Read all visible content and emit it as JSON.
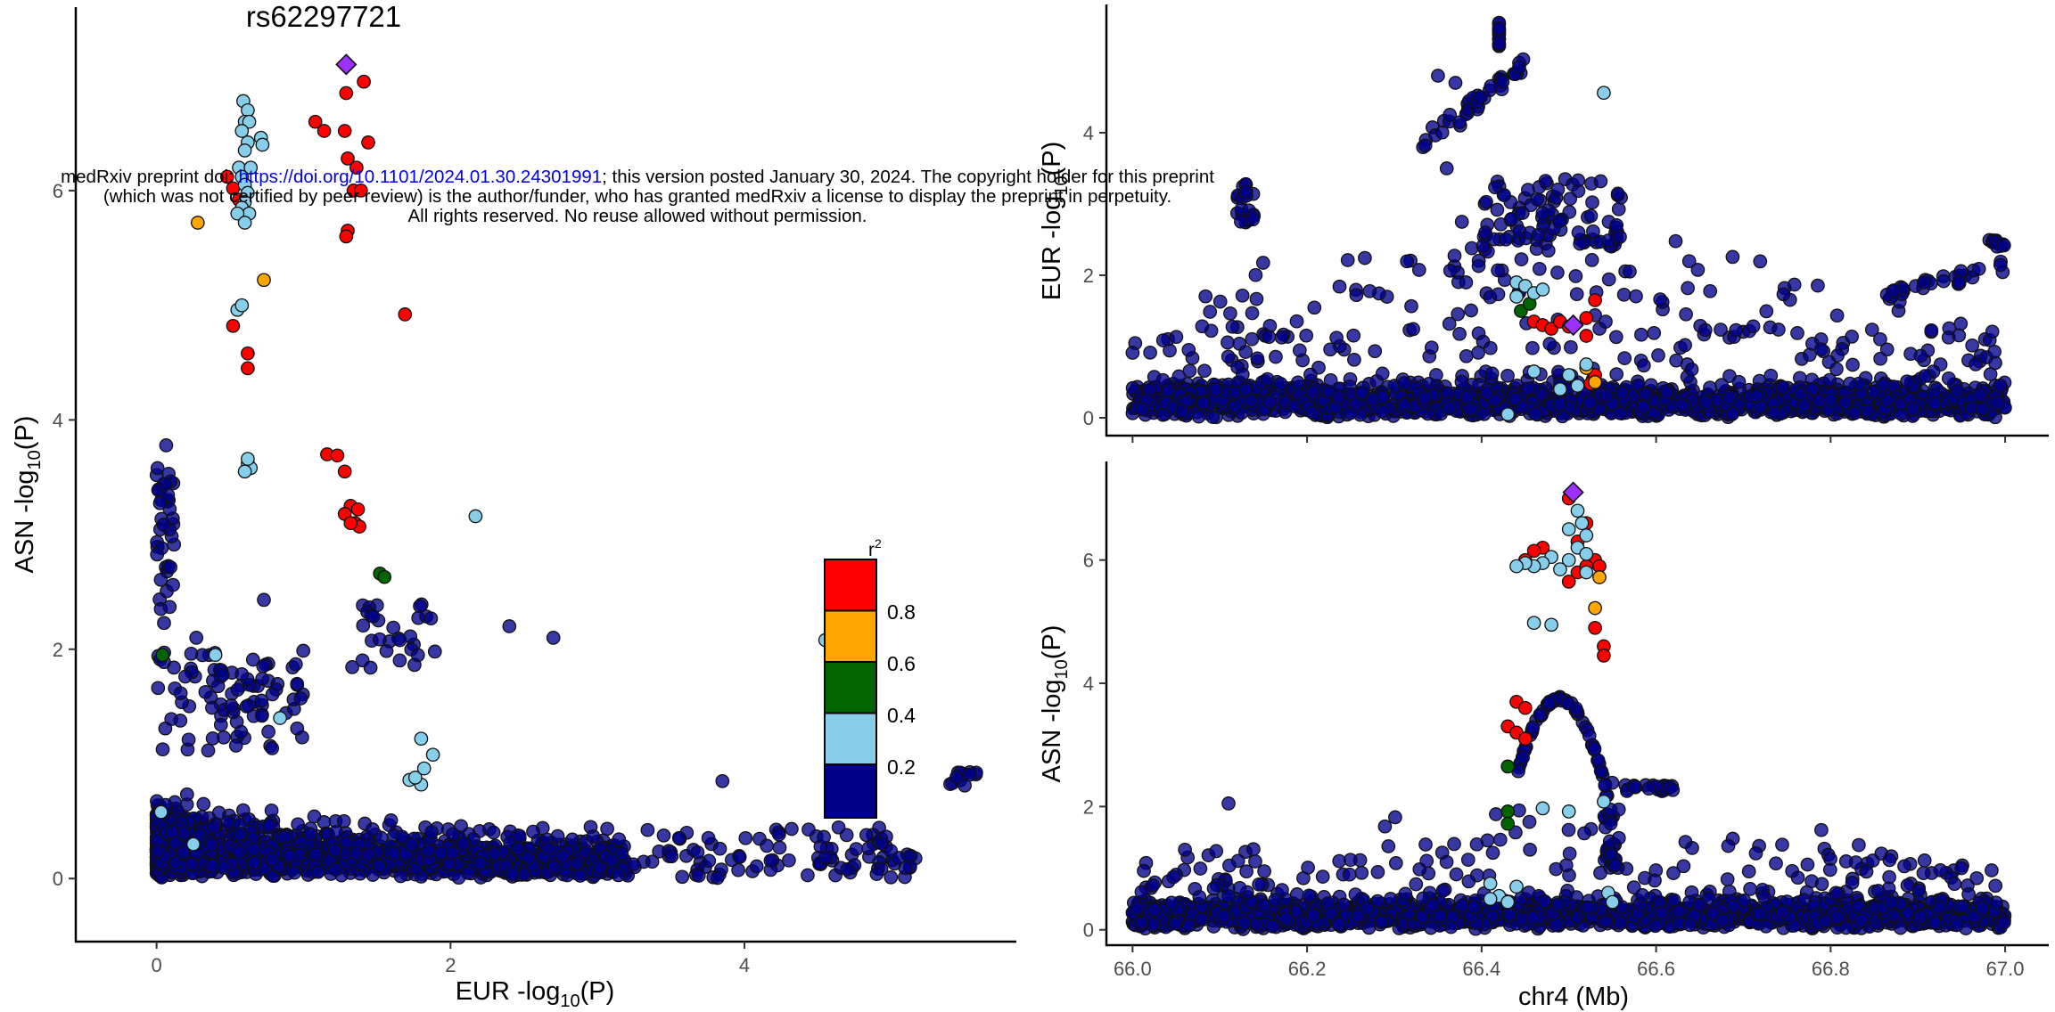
{
  "notice": {
    "line1_prefix": "medRxiv preprint doi: ",
    "line1_link": "https://doi.org/10.1101/2024.01.30.24301991",
    "line1_suffix": "; this version posted January 30, 2024. The copyright holder for this preprint",
    "line2": "(which was not certified by peer review) is the author/funder, who has granted medRxiv a license to display the preprint in perpetuity.",
    "line3": "All rights reserved. No reuse allowed without permission."
  },
  "colors": {
    "r2_0_2": "#00008b",
    "r2_2_4": "#87ceeb",
    "r2_4_6": "#006400",
    "r2_6_8": "#ffa500",
    "r2_8_10": "#ff0000",
    "lead": "#9b30ff"
  },
  "chart_data": [
    {
      "type": "scatter",
      "panel": "left",
      "title": "rs62297721",
      "xlabel": "EUR  -log10(P)",
      "ylabel": "ASN  -log10(P)",
      "xlim": [
        -0.55,
        5.85
      ],
      "ylim": [
        -0.55,
        7.6
      ],
      "xticks": [
        0,
        2,
        4
      ],
      "yticks": [
        0,
        2,
        4,
        6
      ],
      "legend": {
        "title": "r2",
        "labels": [
          "0.8",
          "0.6",
          "0.4",
          "0.2"
        ],
        "placement": "right"
      },
      "lead": {
        "x": 1.29,
        "y": 7.1
      },
      "series": [
        {
          "color": "#ff0000",
          "points": [
            [
              1.29,
              6.85
            ],
            [
              1.41,
              6.95
            ],
            [
              1.08,
              6.6
            ],
            [
              1.14,
              6.52
            ],
            [
              1.28,
              6.52
            ],
            [
              1.44,
              6.42
            ],
            [
              1.3,
              6.28
            ],
            [
              1.36,
              6.2
            ],
            [
              1.34,
              6.0
            ],
            [
              1.39,
              6.0
            ],
            [
              1.3,
              5.65
            ],
            [
              1.29,
              5.6
            ],
            [
              1.69,
              4.92
            ],
            [
              0.52,
              4.82
            ],
            [
              0.62,
              4.58
            ],
            [
              0.62,
              4.45
            ],
            [
              1.16,
              3.7
            ],
            [
              1.23,
              3.69
            ],
            [
              1.28,
              3.55
            ],
            [
              1.32,
              3.25
            ],
            [
              1.37,
              3.22
            ],
            [
              1.28,
              3.18
            ],
            [
              1.35,
              3.1
            ],
            [
              1.38,
              3.07
            ],
            [
              1.32,
              3.1
            ],
            [
              0.52,
              6.02
            ],
            [
              0.56,
              5.92
            ],
            [
              0.48,
              6.12
            ]
          ]
        },
        {
          "color": "#ffa500",
          "points": [
            [
              0.28,
              5.72
            ],
            [
              0.73,
              5.22
            ]
          ]
        },
        {
          "color": "#006400",
          "points": [
            [
              1.52,
              2.66
            ],
            [
              1.55,
              2.63
            ],
            [
              0.04,
              1.95
            ]
          ]
        },
        {
          "color": "#87ceeb",
          "points": [
            [
              0.59,
              6.78
            ],
            [
              0.62,
              6.7
            ],
            [
              0.6,
              6.6
            ],
            [
              0.63,
              6.6
            ],
            [
              0.58,
              6.52
            ],
            [
              0.71,
              6.46
            ],
            [
              0.72,
              6.4
            ],
            [
              0.62,
              6.42
            ],
            [
              0.6,
              6.35
            ],
            [
              0.56,
              6.2
            ],
            [
              0.64,
              6.2
            ],
            [
              0.58,
              6.12
            ],
            [
              0.6,
              6.05
            ],
            [
              0.62,
              5.98
            ],
            [
              0.6,
              5.9
            ],
            [
              0.58,
              5.85
            ],
            [
              0.63,
              5.8
            ],
            [
              0.55,
              5.8
            ],
            [
              0.6,
              5.72
            ],
            [
              0.55,
              4.96
            ],
            [
              0.58,
              5.0
            ],
            [
              0.62,
              3.62
            ],
            [
              0.64,
              3.58
            ],
            [
              0.6,
              3.55
            ],
            [
              0.62,
              3.66
            ],
            [
              2.17,
              3.16
            ],
            [
              4.55,
              2.08
            ],
            [
              0.84,
              1.4
            ],
            [
              0.4,
              1.95
            ],
            [
              1.8,
              1.22
            ],
            [
              1.72,
              0.86
            ],
            [
              1.88,
              1.08
            ],
            [
              1.8,
              0.82
            ],
            [
              0.03,
              0.58
            ],
            [
              0.25,
              0.3
            ],
            [
              1.76,
              0.88
            ],
            [
              1.82,
              0.96
            ]
          ]
        },
        {
          "color": "#00008b",
          "generated": true
        }
      ]
    },
    {
      "type": "scatter",
      "panel": "top-right",
      "ylabel": "EUR  -log10(P)",
      "xlim": [
        65.97,
        67.05
      ],
      "ylim": [
        -0.25,
        5.8
      ],
      "yticks": [
        0,
        2,
        4
      ],
      "lead": {
        "x": 66.505,
        "y": 1.3
      },
      "series": [
        {
          "color": "#ff0000",
          "points": [
            [
              66.46,
              1.35
            ],
            [
              66.47,
              1.3
            ],
            [
              66.48,
              1.25
            ],
            [
              66.49,
              1.35
            ],
            [
              66.5,
              1.28
            ],
            [
              66.52,
              1.4
            ],
            [
              66.53,
              1.65
            ],
            [
              66.52,
              1.15
            ],
            [
              66.53,
              0.6
            ],
            [
              66.525,
              0.48
            ]
          ]
        },
        {
          "color": "#ffa500",
          "points": [
            [
              66.52,
              0.7
            ],
            [
              66.53,
              0.5
            ]
          ]
        },
        {
          "color": "#006400",
          "points": [
            [
              66.445,
              1.5
            ],
            [
              66.455,
              1.6
            ]
          ]
        },
        {
          "color": "#87ceeb",
          "points": [
            [
              66.54,
              4.56
            ],
            [
              66.44,
              1.9
            ],
            [
              66.45,
              1.85
            ],
            [
              66.46,
              1.75
            ],
            [
              66.47,
              1.8
            ],
            [
              66.44,
              1.7
            ],
            [
              66.46,
              0.65
            ],
            [
              66.5,
              0.6
            ],
            [
              66.51,
              0.45
            ],
            [
              66.49,
              0.4
            ],
            [
              66.52,
              0.75
            ],
            [
              66.43,
              0.05
            ]
          ]
        },
        {
          "color": "#00008b",
          "generated": true
        }
      ]
    },
    {
      "type": "scatter",
      "panel": "bottom-right",
      "xlabel": "chr4 (Mb)",
      "ylabel": "ASN  -log10(P)",
      "xlim": [
        65.97,
        67.05
      ],
      "ylim": [
        -0.25,
        7.6
      ],
      "xticks": [
        66.0,
        66.2,
        66.4,
        66.6,
        66.8,
        67.0
      ],
      "yticks": [
        0,
        2,
        4,
        6
      ],
      "lead": {
        "x": 66.505,
        "y": 7.1
      },
      "series": [
        {
          "color": "#ff0000",
          "points": [
            [
              66.5,
              7.0
            ],
            [
              66.52,
              6.6
            ],
            [
              66.51,
              6.3
            ],
            [
              66.53,
              6.0
            ],
            [
              66.535,
              5.9
            ],
            [
              66.47,
              6.2
            ],
            [
              66.46,
              6.15
            ],
            [
              66.45,
              6.0
            ],
            [
              66.51,
              5.8
            ],
            [
              66.5,
              5.65
            ],
            [
              66.53,
              4.9
            ],
            [
              66.54,
              4.6
            ],
            [
              66.54,
              4.45
            ],
            [
              66.44,
              3.7
            ],
            [
              66.45,
              3.6
            ],
            [
              66.43,
              3.3
            ],
            [
              66.44,
              3.2
            ],
            [
              66.45,
              3.1
            ],
            [
              66.52,
              5.9
            ]
          ]
        },
        {
          "color": "#ffa500",
          "points": [
            [
              66.53,
              5.22
            ],
            [
              66.535,
              5.72
            ]
          ]
        },
        {
          "color": "#006400",
          "points": [
            [
              66.43,
              2.65
            ],
            [
              66.43,
              1.92
            ],
            [
              66.43,
              1.72
            ]
          ]
        },
        {
          "color": "#87ceeb",
          "points": [
            [
              66.51,
              6.8
            ],
            [
              66.515,
              6.6
            ],
            [
              66.52,
              6.4
            ],
            [
              66.5,
              6.5
            ],
            [
              66.51,
              6.2
            ],
            [
              66.52,
              6.1
            ],
            [
              66.5,
              6.0
            ],
            [
              66.48,
              6.05
            ],
            [
              66.47,
              5.95
            ],
            [
              66.46,
              5.9
            ],
            [
              66.52,
              5.8
            ],
            [
              66.49,
              5.85
            ],
            [
              66.45,
              5.95
            ],
            [
              66.44,
              5.9
            ],
            [
              66.46,
              4.98
            ],
            [
              66.48,
              4.95
            ],
            [
              66.54,
              2.08
            ],
            [
              66.47,
              1.97
            ],
            [
              66.5,
              1.92
            ],
            [
              66.41,
              0.75
            ],
            [
              66.42,
              0.55
            ],
            [
              66.43,
              0.45
            ],
            [
              66.44,
              0.7
            ],
            [
              66.545,
              0.6
            ],
            [
              66.41,
              0.5
            ],
            [
              66.55,
              0.45
            ]
          ]
        },
        {
          "color": "#00008b",
          "generated": true
        }
      ]
    }
  ]
}
